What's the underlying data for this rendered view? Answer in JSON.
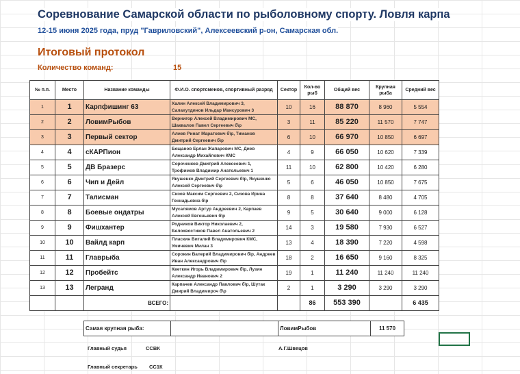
{
  "title": "Соревнование Самарской области по рыболовному спорту. Ловля карпа",
  "subtitle": "12-15 июня 2025 года, пруд \"Гавриловский\", Алексеевский р-он, Самарская обл.",
  "protocol_title": "Итоговый протокол",
  "teams_count_label": "Количество команд:",
  "teams_count": "15",
  "headers": [
    "№ п.п.",
    "Место",
    "Название команды",
    "Ф.И.О. спортсменов, спортивный разряд",
    "Сектор",
    "Кол-во рыб",
    "Общий вес",
    "Крупная рыба",
    "Средний вес"
  ],
  "rows": [
    [
      "1",
      "1",
      "Карпфишинг 63",
      "Халин Алексей Владимирович 3, Салахутдинов Ильдар Мансурович 3",
      "10",
      "16",
      "88 870",
      "8 960",
      "5 554"
    ],
    [
      "2",
      "2",
      "ЛовимРыбов",
      "Вернигор Алексей Владимирович МС, Шаквалов Павел Сергеевич б\\р",
      "3",
      "11",
      "85 220",
      "11 570",
      "7 747"
    ],
    [
      "3",
      "3",
      "Первый сектор",
      "Алиев Ринат Маратович б\\р, Тиманов Дмитрий Сергеевич б\\р",
      "6",
      "10",
      "66 970",
      "10 850",
      "6 697"
    ],
    [
      "4",
      "4",
      "сКАРПион",
      "Бещанов Ерлан Жапарович МС, Диев Александр Михайлович КМС",
      "4",
      "9",
      "66 050",
      "10 620",
      "7 339"
    ],
    [
      "5",
      "5",
      "ДВ Бразерс",
      "Сороченков Дмитрий Алексеевич 1, Трофимов Владимир Анатольевич 1",
      "11",
      "10",
      "62 800",
      "10 420",
      "6 280"
    ],
    [
      "6",
      "6",
      "Чип и Дейл",
      "Якушенко Дмитрий Сергеевич б\\р, Якушенко Алексей Сергеевич б\\р",
      "5",
      "6",
      "46 050",
      "10 850",
      "7 675"
    ],
    [
      "7",
      "7",
      "Талисман",
      "Сизов Максим Сергеевич 2, Сизова Ирина Геннадьевна б\\р",
      "8",
      "8",
      "37 640",
      "8 480",
      "4 705"
    ],
    [
      "8",
      "8",
      "Боевые ондатры",
      "Мусалямов Артур Андреевич 2, Карпаев Алексей Евгеньевич б\\р",
      "9",
      "5",
      "30 640",
      "9 000",
      "6 128"
    ],
    [
      "9",
      "9",
      "Фишхантер",
      "Родников Виктор Николаевич 2, Белохвостиков Павел Анатольевич 2",
      "14",
      "3",
      "19 580",
      "7 930",
      "6 527"
    ],
    [
      "10",
      "10",
      "Вайлд карп",
      "Пласкин Виталий Владимирович КМС, Умичевич Милан 3",
      "13",
      "4",
      "18 390",
      "7 220",
      "4 598"
    ],
    [
      "11",
      "11",
      "Главрыба",
      "Сорокин Валерий Владимирович б\\р, Андреев Иван Александрович б\\р",
      "18",
      "2",
      "16 650",
      "9 160",
      "8 325"
    ],
    [
      "12",
      "12",
      "Пробейтс",
      "Кветкин Игорь Владимирович б\\р, Лузин Александр Иванович 2",
      "19",
      "1",
      "11 240",
      "11 240",
      "11 240"
    ],
    [
      "13",
      "13",
      "Легранд",
      "Карпачев Александр Павлович б\\р, Шутак Дмирий Владимироч б\\р",
      "2",
      "1",
      "3 290",
      "3 290",
      "3 290"
    ]
  ],
  "total": {
    "label": "ВСЕГО:",
    "fish": "86",
    "weight": "553 390",
    "avg": "6 435"
  },
  "biggest": {
    "label": "Самая крупная рыба:",
    "team": "ЛовимРыбов",
    "weight": "11 570"
  },
  "judge": {
    "label": "Главный судья",
    "rank": "ССВК",
    "name": "А.Г.Швецов"
  },
  "secretary": {
    "label": "Главный секретарь",
    "rank": "СС1К"
  }
}
